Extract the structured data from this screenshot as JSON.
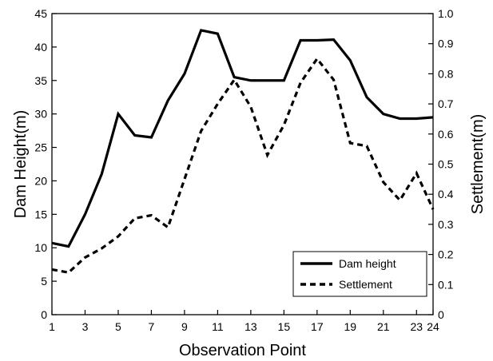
{
  "chart_data": {
    "type": "line",
    "title": "",
    "xlabel": "Observation Point",
    "ylabel_left": "Dam Height(m)",
    "ylabel_right": "Settlement(m)",
    "x": [
      1,
      2,
      3,
      4,
      5,
      6,
      7,
      8,
      9,
      10,
      11,
      12,
      13,
      14,
      15,
      16,
      17,
      18,
      19,
      20,
      21,
      22,
      23,
      24
    ],
    "x_ticks": [
      "1",
      "3",
      "5",
      "7",
      "9",
      "11",
      "13",
      "15",
      "17",
      "19",
      "21",
      "23",
      "24"
    ],
    "x_tick_values": [
      1,
      3,
      5,
      7,
      9,
      11,
      13,
      15,
      17,
      19,
      21,
      23,
      24
    ],
    "xlim": [
      1,
      24
    ],
    "ylim_left": [
      0,
      45
    ],
    "yticks_left": [
      "0",
      "5",
      "10",
      "15",
      "20",
      "25",
      "30",
      "35",
      "40",
      "45"
    ],
    "ylim_right": [
      0,
      1.0
    ],
    "yticks_right": [
      "0",
      "0.1",
      "0.2",
      "0.3",
      "0.4",
      "0.5",
      "0.6",
      "0.7",
      "0.8",
      "0.9",
      "1.0"
    ],
    "grid": false,
    "legend_position": "bottom-right",
    "series": [
      {
        "name": "Dam height",
        "axis": "left",
        "style": "solid",
        "color": "#000000",
        "values": [
          10.7,
          10.2,
          15.0,
          21.0,
          30.0,
          26.8,
          26.5,
          32.0,
          36.0,
          42.5,
          42.0,
          35.5,
          35.0,
          35.0,
          35.0,
          41.0,
          41.0,
          41.1,
          38.0,
          32.5,
          30.0,
          29.3,
          29.3,
          29.5
        ]
      },
      {
        "name": "Settlement",
        "axis": "right",
        "style": "dashed",
        "color": "#000000",
        "values": [
          0.15,
          0.14,
          0.19,
          0.22,
          0.26,
          0.32,
          0.33,
          0.29,
          0.45,
          0.61,
          0.7,
          0.78,
          0.69,
          0.53,
          0.63,
          0.77,
          0.85,
          0.78,
          0.57,
          0.56,
          0.44,
          0.38,
          0.47,
          0.35
        ]
      }
    ]
  }
}
